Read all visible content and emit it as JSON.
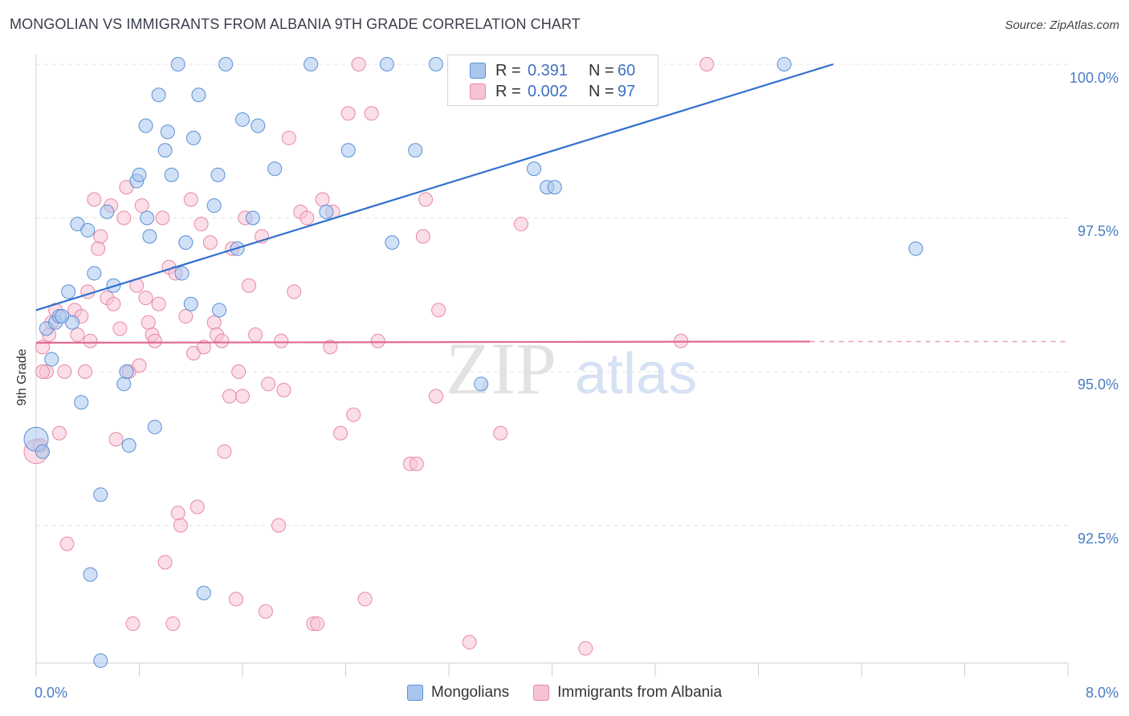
{
  "header": {
    "title": "MONGOLIAN VS IMMIGRANTS FROM ALBANIA 9TH GRADE CORRELATION CHART",
    "source": "Source: ZipAtlas.com"
  },
  "watermark": {
    "zip": "ZIP",
    "atlas": "atlas"
  },
  "legend": {
    "rows": [
      {
        "r_label": "R =",
        "r_value": "0.391",
        "n_label": "N =",
        "n_value": "60",
        "color": "#a9c6ee",
        "border": "#5b8fd6"
      },
      {
        "r_label": "R =",
        "r_value": "0.002",
        "n_label": "N =",
        "n_value": "97",
        "color": "#f7c2d4",
        "border": "#e689a8"
      }
    ]
  },
  "bottom_legend": [
    {
      "label": "Mongolians",
      "color": "#a9c6ee",
      "border": "#5b8fd6"
    },
    {
      "label": "Immigrants from Albania",
      "color": "#f7c2d4",
      "border": "#e689a8"
    }
  ],
  "chart_data": {
    "type": "scatter",
    "title": "MONGOLIAN VS IMMIGRANTS FROM ALBANIA 9TH GRADE CORRELATION CHART",
    "xlabel": "",
    "ylabel": "9th Grade",
    "xlim": [
      0,
      8
    ],
    "ylim": [
      90.0,
      100.2
    ],
    "x_tick_labels": [
      "0.0%",
      "8.0%"
    ],
    "y_ticks": [
      {
        "value": 100.0,
        "label": "100.0%"
      },
      {
        "value": 97.5,
        "label": "97.5%"
      },
      {
        "value": 95.0,
        "label": "95.0%"
      },
      {
        "value": 92.5,
        "label": "92.5%"
      }
    ],
    "series": [
      {
        "name": "Mongolians",
        "color": "#5b8fd6",
        "fill": "#a9c6ee",
        "trend": {
          "x": [
            0.0,
            6.18
          ],
          "y": [
            96.0,
            100.0
          ]
        },
        "points": [
          [
            0.0,
            93.9
          ],
          [
            0.08,
            95.7
          ],
          [
            0.12,
            95.2
          ],
          [
            0.15,
            95.8
          ],
          [
            0.18,
            95.9
          ],
          [
            0.25,
            96.3
          ],
          [
            0.28,
            95.8
          ],
          [
            0.32,
            97.4
          ],
          [
            0.35,
            94.5
          ],
          [
            0.4,
            97.3
          ],
          [
            0.45,
            96.6
          ],
          [
            0.5,
            93.0
          ],
          [
            0.42,
            91.7
          ],
          [
            0.55,
            97.6
          ],
          [
            0.6,
            96.4
          ],
          [
            0.68,
            94.8
          ],
          [
            0.7,
            95.0
          ],
          [
            0.72,
            93.8
          ],
          [
            0.78,
            98.1
          ],
          [
            0.8,
            98.2
          ],
          [
            0.85,
            99.0
          ],
          [
            0.86,
            97.5
          ],
          [
            0.88,
            97.2
          ],
          [
            0.92,
            94.1
          ],
          [
            0.95,
            99.5
          ],
          [
            1.0,
            98.6
          ],
          [
            1.02,
            98.9
          ],
          [
            1.05,
            98.2
          ],
          [
            1.1,
            100.0
          ],
          [
            1.13,
            96.6
          ],
          [
            1.16,
            97.1
          ],
          [
            1.2,
            96.1
          ],
          [
            1.22,
            98.8
          ],
          [
            1.26,
            99.5
          ],
          [
            1.3,
            91.4
          ],
          [
            1.38,
            97.7
          ],
          [
            1.41,
            98.2
          ],
          [
            1.42,
            96.0
          ],
          [
            1.47,
            100.0
          ],
          [
            1.56,
            97.0
          ],
          [
            1.6,
            99.1
          ],
          [
            1.68,
            97.5
          ],
          [
            1.72,
            99.0
          ],
          [
            1.85,
            98.3
          ],
          [
            2.13,
            100.0
          ],
          [
            2.25,
            97.6
          ],
          [
            2.42,
            98.6
          ],
          [
            2.72,
            100.0
          ],
          [
            2.76,
            97.1
          ],
          [
            2.94,
            98.6
          ],
          [
            3.1,
            100.0
          ],
          [
            3.45,
            94.8
          ],
          [
            3.86,
            98.3
          ],
          [
            3.96,
            98.0
          ],
          [
            4.02,
            98.0
          ],
          [
            5.8,
            100.0
          ],
          [
            6.82,
            97.0
          ],
          [
            0.05,
            93.7
          ],
          [
            0.5,
            90.3
          ],
          [
            0.2,
            95.9
          ]
        ]
      },
      {
        "name": "Immigrants from Albania",
        "color": "#e689a8",
        "fill": "#f7c2d4",
        "trend": {
          "x": [
            0.0,
            6.0
          ],
          "y": [
            95.47,
            95.49
          ]
        },
        "trend_dashed": {
          "x": [
            6.0,
            8.0
          ],
          "y": [
            95.49,
            95.49
          ]
        },
        "points": [
          [
            0.0,
            93.7
          ],
          [
            0.05,
            95.4
          ],
          [
            0.08,
            95.0
          ],
          [
            0.1,
            95.6
          ],
          [
            0.12,
            95.8
          ],
          [
            0.15,
            96.0
          ],
          [
            0.18,
            94.0
          ],
          [
            0.22,
            95.0
          ],
          [
            0.24,
            92.2
          ],
          [
            0.3,
            96.0
          ],
          [
            0.32,
            95.6
          ],
          [
            0.35,
            95.9
          ],
          [
            0.38,
            95.0
          ],
          [
            0.4,
            96.3
          ],
          [
            0.42,
            95.5
          ],
          [
            0.45,
            97.8
          ],
          [
            0.48,
            97.0
          ],
          [
            0.5,
            97.2
          ],
          [
            0.55,
            96.2
          ],
          [
            0.58,
            97.7
          ],
          [
            0.6,
            96.1
          ],
          [
            0.62,
            93.9
          ],
          [
            0.65,
            95.7
          ],
          [
            0.68,
            97.5
          ],
          [
            0.7,
            98.0
          ],
          [
            0.72,
            95.0
          ],
          [
            0.75,
            90.9
          ],
          [
            0.78,
            96.4
          ],
          [
            0.8,
            95.1
          ],
          [
            0.82,
            97.7
          ],
          [
            0.85,
            96.2
          ],
          [
            0.87,
            95.8
          ],
          [
            0.9,
            95.6
          ],
          [
            0.92,
            95.5
          ],
          [
            0.95,
            96.1
          ],
          [
            0.98,
            97.5
          ],
          [
            1.0,
            91.9
          ],
          [
            1.03,
            96.7
          ],
          [
            1.06,
            90.9
          ],
          [
            1.08,
            96.6
          ],
          [
            1.1,
            92.7
          ],
          [
            1.12,
            92.5
          ],
          [
            1.16,
            95.9
          ],
          [
            1.2,
            97.8
          ],
          [
            1.22,
            95.3
          ],
          [
            1.25,
            92.8
          ],
          [
            1.28,
            97.4
          ],
          [
            1.3,
            95.4
          ],
          [
            1.35,
            97.1
          ],
          [
            1.38,
            95.8
          ],
          [
            1.4,
            95.6
          ],
          [
            1.44,
            95.5
          ],
          [
            1.46,
            93.7
          ],
          [
            1.5,
            94.6
          ],
          [
            1.52,
            97.0
          ],
          [
            1.55,
            91.3
          ],
          [
            1.57,
            95.0
          ],
          [
            1.6,
            94.6
          ],
          [
            1.62,
            97.5
          ],
          [
            1.65,
            96.4
          ],
          [
            1.7,
            95.6
          ],
          [
            1.75,
            97.2
          ],
          [
            1.78,
            91.1
          ],
          [
            1.8,
            94.8
          ],
          [
            1.88,
            92.5
          ],
          [
            1.9,
            95.5
          ],
          [
            1.92,
            94.7
          ],
          [
            1.96,
            98.8
          ],
          [
            2.0,
            96.3
          ],
          [
            2.05,
            97.6
          ],
          [
            2.1,
            97.5
          ],
          [
            2.15,
            90.9
          ],
          [
            2.18,
            90.9
          ],
          [
            2.22,
            97.8
          ],
          [
            2.28,
            95.4
          ],
          [
            2.3,
            97.6
          ],
          [
            2.36,
            94.0
          ],
          [
            2.42,
            99.2
          ],
          [
            2.46,
            94.3
          ],
          [
            2.5,
            100.0
          ],
          [
            2.55,
            91.3
          ],
          [
            2.6,
            99.2
          ],
          [
            2.65,
            95.5
          ],
          [
            2.9,
            93.5
          ],
          [
            2.95,
            93.5
          ],
          [
            3.0,
            97.2
          ],
          [
            3.02,
            97.8
          ],
          [
            3.1,
            94.6
          ],
          [
            3.12,
            96.0
          ],
          [
            3.36,
            90.6
          ],
          [
            3.6,
            94.0
          ],
          [
            3.76,
            97.4
          ],
          [
            4.26,
            90.5
          ],
          [
            5.0,
            95.5
          ],
          [
            5.2,
            100.0
          ],
          [
            0.05,
            95.0
          ],
          [
            0.03,
            93.8
          ]
        ]
      }
    ]
  }
}
